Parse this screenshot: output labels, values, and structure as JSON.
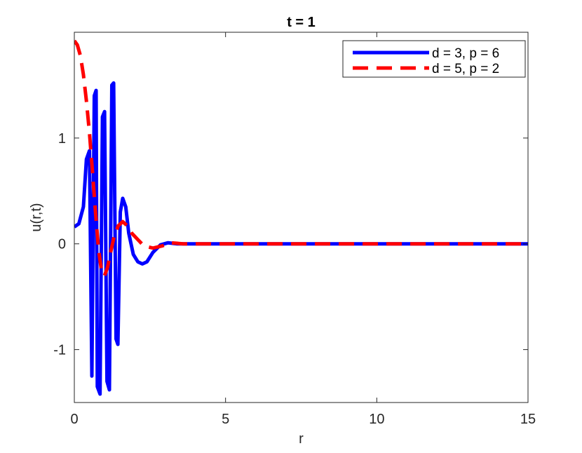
{
  "chart_data": {
    "type": "line",
    "title": "t = 1",
    "xlabel": "r",
    "ylabel": "u(r,t)",
    "xlim": [
      0,
      15
    ],
    "ylim": [
      -1.5,
      2.0
    ],
    "xticks": [
      0,
      5,
      10,
      15
    ],
    "xtick_labels": [
      "0",
      "5",
      "10",
      "15"
    ],
    "yticks": [
      -1,
      0,
      1
    ],
    "ytick_labels": [
      "-1",
      "0",
      "1"
    ],
    "grid": false,
    "legend_position": "top-right",
    "series": [
      {
        "name": "d = 3, p = 6",
        "color": "#0000ff",
        "style": "solid",
        "x": [
          0,
          0.15,
          0.3,
          0.4,
          0.5,
          0.58,
          0.66,
          0.72,
          0.76,
          0.85,
          0.93,
          1.0,
          1.08,
          1.16,
          1.24,
          1.3,
          1.38,
          1.44,
          1.52,
          1.6,
          1.7,
          1.8,
          1.95,
          2.1,
          2.25,
          2.4,
          2.6,
          2.85,
          3.1,
          3.4,
          3.8,
          5,
          7.5,
          10,
          12.5,
          15
        ],
        "y": [
          0.16,
          0.19,
          0.35,
          0.8,
          0.88,
          -1.25,
          1.4,
          1.45,
          -1.35,
          -1.42,
          1.2,
          1.25,
          -1.3,
          -1.38,
          1.5,
          1.52,
          -0.9,
          -0.95,
          0.3,
          0.43,
          0.35,
          0.1,
          -0.1,
          -0.17,
          -0.19,
          -0.17,
          -0.08,
          -0.01,
          0.01,
          0.0,
          0.0,
          0.0,
          0.0,
          0.0,
          0.0,
          0.0
        ]
      },
      {
        "name": "d = 5, p = 2",
        "color": "#ff0000",
        "style": "dashed",
        "x": [
          0,
          0.1,
          0.2,
          0.3,
          0.4,
          0.5,
          0.6,
          0.7,
          0.8,
          0.9,
          1.0,
          1.1,
          1.2,
          1.3,
          1.45,
          1.6,
          1.75,
          1.9,
          2.1,
          2.3,
          2.6,
          2.9,
          3.2,
          3.6,
          4,
          5,
          7.5,
          10,
          12.5,
          15
        ],
        "y": [
          1.92,
          1.88,
          1.78,
          1.6,
          1.35,
          1.05,
          0.68,
          0.3,
          -0.05,
          -0.26,
          -0.3,
          -0.22,
          -0.08,
          0.05,
          0.17,
          0.21,
          0.17,
          0.1,
          0.04,
          -0.02,
          -0.04,
          -0.02,
          0.01,
          0.0,
          0.0,
          0.0,
          0.0,
          0.0,
          0.0,
          0.0
        ]
      }
    ]
  }
}
